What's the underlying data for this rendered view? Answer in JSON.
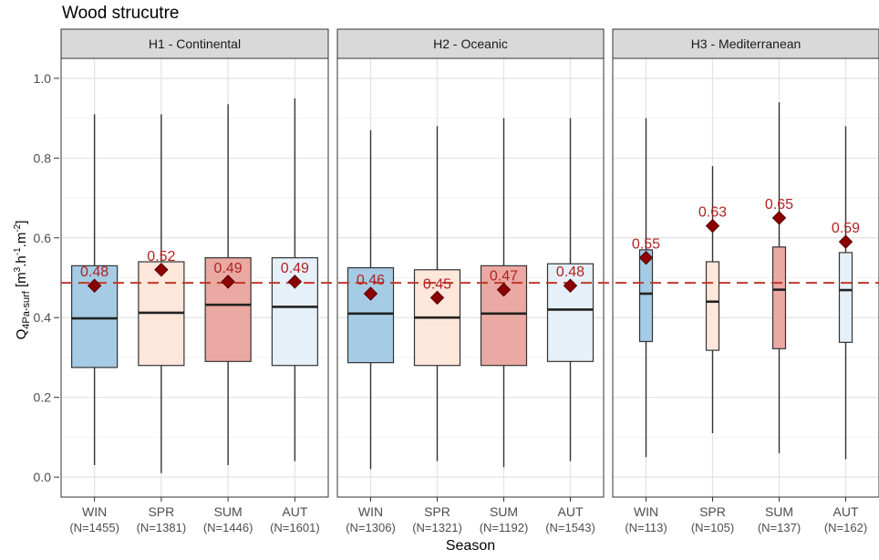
{
  "chart_data": {
    "type": "boxplot",
    "title": "Wood strucutre",
    "xlabel": "Season",
    "ylabel": {
      "main": "Q",
      "sub": "4Pa-surf",
      "units_open": " [m",
      "sup1": "3",
      "mid1": ".h",
      "sup2": "-1",
      "mid2": ".m",
      "sup3": "-2",
      "units_close": "]"
    },
    "ylim": [
      -0.05,
      1.05
    ],
    "yticks": [
      0.0,
      0.2,
      0.4,
      0.6,
      0.8,
      1.0
    ],
    "ytick_labels": [
      "0.0",
      "0.2",
      "0.4",
      "0.6",
      "0.8",
      "1.0"
    ],
    "grid": true,
    "reference_line": {
      "y": 0.487,
      "style": "dashed",
      "color": "#c0392b"
    },
    "season_colors": {
      "WIN": "#a6cbe4",
      "SPR": "#fde6da",
      "SUM": "#eaa9a2",
      "AUT": "#e6f0f8"
    },
    "mean_marker_color": "#8b0000",
    "label_color": "#b22222",
    "panels": [
      {
        "name": "H1 - Continental",
        "box_width": "wide",
        "groups": [
          {
            "season": "WIN",
            "n_label": "(N=1455)",
            "whisker_low": 0.03,
            "q1": 0.275,
            "median": 0.398,
            "q3": 0.53,
            "whisker_high": 0.91,
            "mean": 0.48,
            "mean_label": "0.48"
          },
          {
            "season": "SPR",
            "n_label": "(N=1381)",
            "whisker_low": 0.01,
            "q1": 0.28,
            "median": 0.412,
            "q3": 0.54,
            "whisker_high": 0.91,
            "mean": 0.52,
            "mean_label": "0.52"
          },
          {
            "season": "SUM",
            "n_label": "(N=1446)",
            "whisker_low": 0.03,
            "q1": 0.29,
            "median": 0.432,
            "q3": 0.55,
            "whisker_high": 0.935,
            "mean": 0.49,
            "mean_label": "0.49"
          },
          {
            "season": "AUT",
            "n_label": "(N=1601)",
            "whisker_low": 0.04,
            "q1": 0.28,
            "median": 0.427,
            "q3": 0.55,
            "whisker_high": 0.95,
            "mean": 0.49,
            "mean_label": "0.49"
          }
        ]
      },
      {
        "name": "H2 - Oceanic",
        "box_width": "wide",
        "groups": [
          {
            "season": "WIN",
            "n_label": "(N=1306)",
            "whisker_low": 0.02,
            "q1": 0.287,
            "median": 0.41,
            "q3": 0.525,
            "whisker_high": 0.87,
            "mean": 0.46,
            "mean_label": "0.46"
          },
          {
            "season": "SPR",
            "n_label": "(N=1321)",
            "whisker_low": 0.04,
            "q1": 0.28,
            "median": 0.4,
            "q3": 0.52,
            "whisker_high": 0.88,
            "mean": 0.45,
            "mean_label": "0.45"
          },
          {
            "season": "SUM",
            "n_label": "(N=1192)",
            "whisker_low": 0.025,
            "q1": 0.28,
            "median": 0.41,
            "q3": 0.53,
            "whisker_high": 0.9,
            "mean": 0.47,
            "mean_label": "0.47"
          },
          {
            "season": "AUT",
            "n_label": "(N=1543)",
            "whisker_low": 0.04,
            "q1": 0.29,
            "median": 0.42,
            "q3": 0.535,
            "whisker_high": 0.9,
            "mean": 0.48,
            "mean_label": "0.48"
          }
        ]
      },
      {
        "name": "H3 - Mediterranean",
        "box_width": "narrow",
        "groups": [
          {
            "season": "WIN",
            "n_label": "(N=113)",
            "whisker_low": 0.05,
            "q1": 0.34,
            "median": 0.46,
            "q3": 0.57,
            "whisker_high": 0.9,
            "mean": 0.55,
            "mean_label": "0.55"
          },
          {
            "season": "SPR",
            "n_label": "(N=105)",
            "whisker_low": 0.11,
            "q1": 0.318,
            "median": 0.44,
            "q3": 0.54,
            "whisker_high": 0.78,
            "mean": 0.63,
            "mean_label": "0.63"
          },
          {
            "season": "SUM",
            "n_label": "(N=137)",
            "whisker_low": 0.06,
            "q1": 0.322,
            "median": 0.47,
            "q3": 0.577,
            "whisker_high": 0.94,
            "mean": 0.65,
            "mean_label": "0.65"
          },
          {
            "season": "AUT",
            "n_label": "(N=162)",
            "whisker_low": 0.045,
            "q1": 0.338,
            "median": 0.469,
            "q3": 0.563,
            "whisker_high": 0.88,
            "mean": 0.59,
            "mean_label": "0.59"
          }
        ]
      }
    ]
  }
}
